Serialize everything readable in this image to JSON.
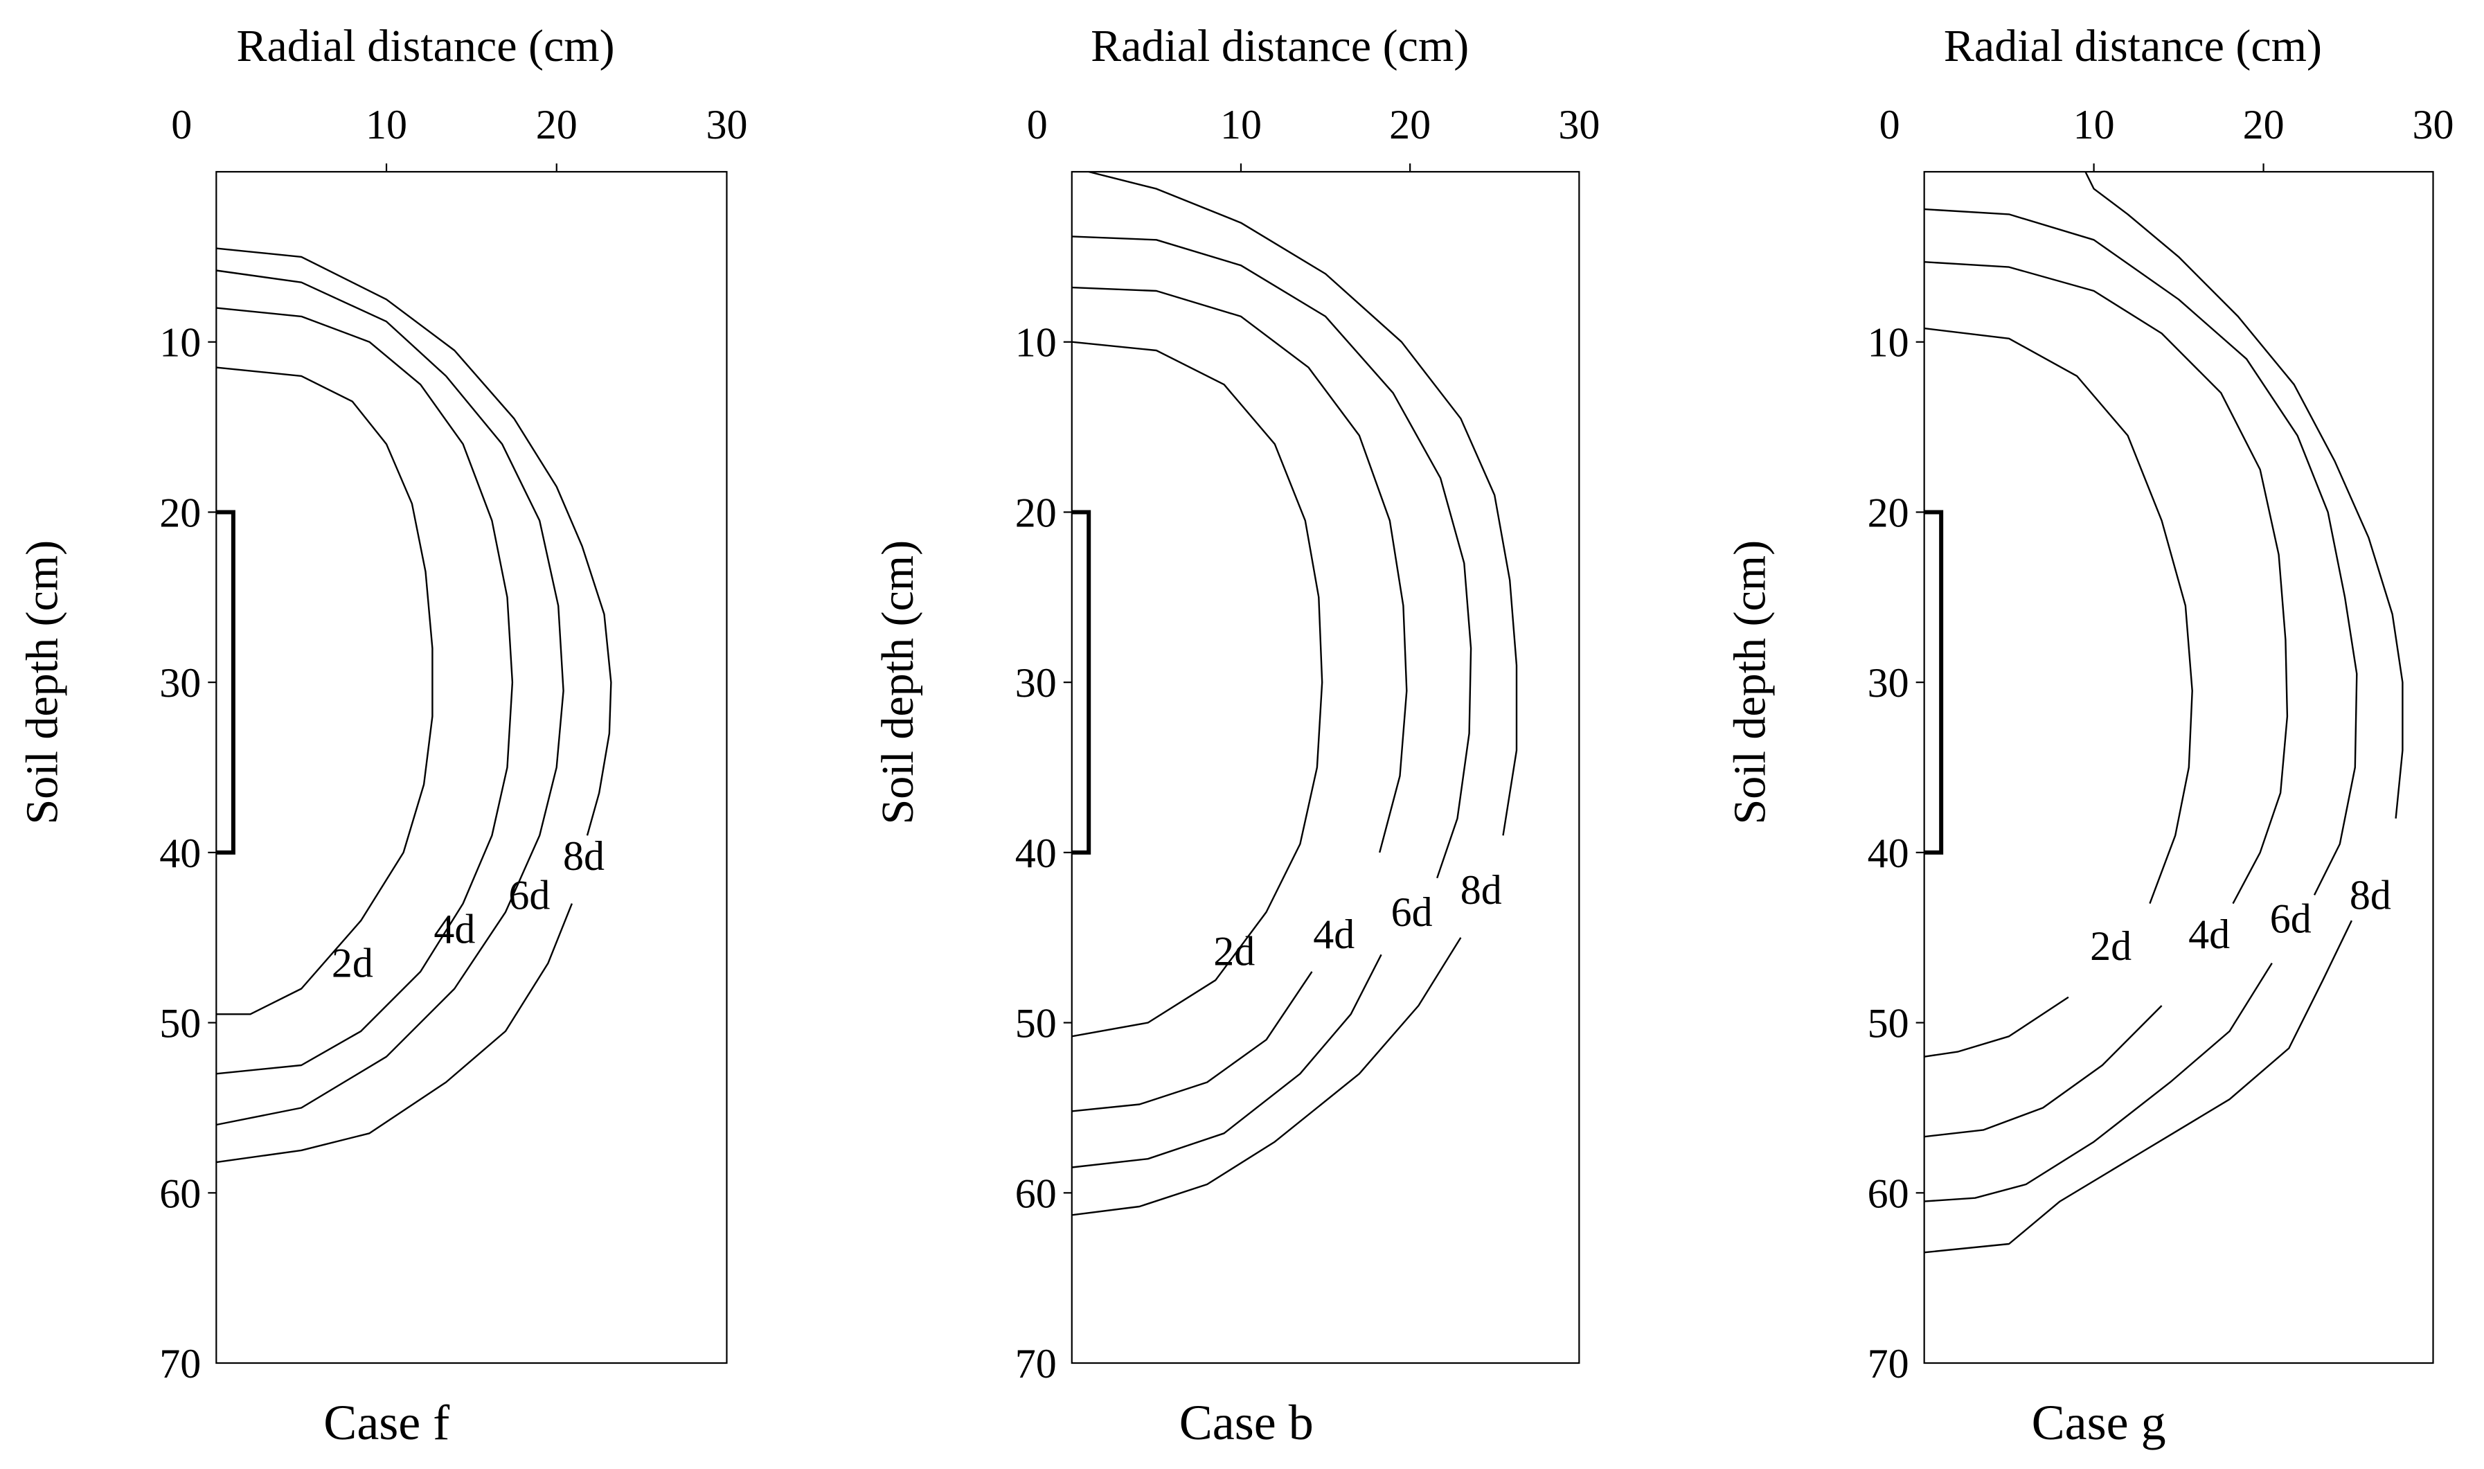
{
  "chart_data": [
    {
      "type": "line",
      "caption": "Case f",
      "xlabel": "Radial distance (cm)",
      "ylabel": "Soil depth (cm)",
      "xlim": [
        0,
        30
      ],
      "ylim": [
        70,
        0
      ],
      "x_ticks": [
        0,
        10,
        20,
        30
      ],
      "y_ticks": [
        10,
        20,
        30,
        40,
        50,
        60,
        70
      ],
      "x_axis_position": "top",
      "y_inverted": true,
      "grid": false,
      "emitter_segment": {
        "x": 1,
        "y": [
          20,
          40
        ]
      },
      "series": [
        {
          "name": "2d",
          "label_at": [
            8,
            46.5
          ],
          "points": [
            [
              0,
              11.5
            ],
            [
              5,
              12
            ],
            [
              8,
              13.5
            ],
            [
              10,
              16
            ],
            [
              11.5,
              19.5
            ],
            [
              12.3,
              23.5
            ],
            [
              12.7,
              28
            ],
            [
              12.7,
              32
            ],
            [
              12.2,
              36
            ],
            [
              11,
              40
            ],
            [
              8.5,
              44
            ],
            [
              5,
              48
            ],
            [
              2,
              49.5
            ],
            [
              0,
              49.5
            ]
          ]
        },
        {
          "name": "4d",
          "label_at": [
            14,
            44.5
          ],
          "points": [
            [
              0,
              8
            ],
            [
              5,
              8.5
            ],
            [
              9,
              10
            ],
            [
              12,
              12.5
            ],
            [
              14.5,
              16
            ],
            [
              16.2,
              20.5
            ],
            [
              17.1,
              25
            ],
            [
              17.4,
              30
            ],
            [
              17.1,
              35
            ],
            [
              16.2,
              39
            ],
            [
              14.5,
              43
            ],
            [
              12,
              47
            ],
            [
              8.5,
              50.5
            ],
            [
              5,
              52.5
            ],
            [
              0,
              53
            ]
          ]
        },
        {
          "name": "6d",
          "label_at": [
            18.4,
            42.5
          ],
          "points": [
            [
              0,
              5.8
            ],
            [
              5,
              6.5
            ],
            [
              10,
              8.8
            ],
            [
              13.5,
              12
            ],
            [
              16.8,
              16
            ],
            [
              19,
              20.5
            ],
            [
              20.1,
              25.5
            ],
            [
              20.4,
              30.5
            ],
            [
              20,
              35
            ],
            [
              19,
              39
            ],
            [
              17,
              43.5
            ],
            [
              14,
              48
            ],
            [
              10,
              52
            ],
            [
              5,
              55
            ],
            [
              0,
              56
            ]
          ]
        },
        {
          "name": "8d",
          "label_at": [
            21.6,
            40.2
          ],
          "points": [
            [
              0,
              4.5
            ],
            [
              5,
              5
            ],
            [
              10,
              7.5
            ],
            [
              14,
              10.5
            ],
            [
              17.5,
              14.5
            ],
            [
              20,
              18.5
            ],
            [
              21.5,
              22
            ],
            [
              22.8,
              26
            ],
            [
              23.2,
              30
            ],
            [
              23.1,
              33
            ],
            [
              22.5,
              36.5
            ],
            [
              21.8,
              39
            ]
          ]
        },
        {
          "name": "",
          "points": [
            [
              20.9,
              43
            ],
            [
              19.5,
              46.5
            ],
            [
              17,
              50.5
            ],
            [
              13.5,
              53.5
            ],
            [
              9,
              56.5
            ],
            [
              5,
              57.5
            ],
            [
              0,
              58.2
            ]
          ]
        }
      ]
    },
    {
      "type": "line",
      "caption": "Case b",
      "xlabel": "Radial distance (cm)",
      "ylabel": "Soil depth (cm)",
      "xlim": [
        0,
        30
      ],
      "ylim": [
        70,
        0
      ],
      "x_ticks": [
        0,
        10,
        20,
        30
      ],
      "y_ticks": [
        10,
        20,
        30,
        40,
        50,
        60,
        70
      ],
      "x_axis_position": "top",
      "y_inverted": true,
      "grid": false,
      "emitter_segment": {
        "x": 1,
        "y": [
          20,
          40
        ]
      },
      "series": [
        {
          "name": "2d",
          "label_at": [
            9.6,
            45.8
          ],
          "points": [
            [
              0,
              10
            ],
            [
              5,
              10.5
            ],
            [
              9,
              12.5
            ],
            [
              12,
              16
            ],
            [
              13.8,
              20.5
            ],
            [
              14.6,
              25
            ],
            [
              14.8,
              30
            ],
            [
              14.5,
              35
            ],
            [
              13.5,
              39.5
            ],
            [
              11.5,
              43.5
            ],
            [
              8.5,
              47.5
            ],
            [
              4.5,
              50
            ],
            [
              0,
              50.8
            ]
          ]
        },
        {
          "name": "4d",
          "label_at": [
            15.5,
            44.8
          ],
          "points": [
            [
              0,
              6.8
            ],
            [
              5,
              7
            ],
            [
              10,
              8.5
            ],
            [
              14,
              11.5
            ],
            [
              17,
              15.5
            ],
            [
              18.8,
              20.5
            ],
            [
              19.6,
              25.5
            ],
            [
              19.8,
              30.5
            ],
            [
              19.4,
              35.5
            ],
            [
              18.2,
              40
            ]
          ]
        },
        {
          "name": "",
          "points": [
            [
              14.2,
              47
            ],
            [
              11.5,
              51
            ],
            [
              8,
              53.5
            ],
            [
              4,
              54.8
            ],
            [
              0,
              55.2
            ]
          ]
        },
        {
          "name": "6d",
          "label_at": [
            20.1,
            43.5
          ],
          "points": [
            [
              0,
              3.8
            ],
            [
              5,
              4
            ],
            [
              10,
              5.5
            ],
            [
              15,
              8.5
            ],
            [
              19,
              13
            ],
            [
              21.8,
              18
            ],
            [
              23.2,
              23
            ],
            [
              23.6,
              28
            ],
            [
              23.5,
              33
            ],
            [
              22.8,
              38
            ],
            [
              21.6,
              41.5
            ]
          ]
        },
        {
          "name": "",
          "points": [
            [
              18.3,
              46
            ],
            [
              16.5,
              49.5
            ],
            [
              13.5,
              53
            ],
            [
              9,
              56.5
            ],
            [
              4.5,
              58
            ],
            [
              0,
              58.5
            ]
          ]
        },
        {
          "name": "8d",
          "label_at": [
            24.2,
            42.2
          ],
          "points": [
            [
              1,
              0
            ],
            [
              5,
              1
            ],
            [
              10,
              3
            ],
            [
              15,
              6
            ],
            [
              19.5,
              10
            ],
            [
              23,
              14.5
            ],
            [
              25,
              19
            ],
            [
              25.9,
              24
            ],
            [
              26.3,
              29
            ],
            [
              26.3,
              34
            ],
            [
              25.5,
              39
            ]
          ]
        },
        {
          "name": "",
          "points": [
            [
              23,
              45
            ],
            [
              20.5,
              49
            ],
            [
              17,
              53
            ],
            [
              12,
              57
            ],
            [
              8,
              59.5
            ],
            [
              4,
              60.8
            ],
            [
              0,
              61.3
            ]
          ]
        }
      ]
    },
    {
      "type": "line",
      "caption": "Case g",
      "xlabel": "Radial distance (cm)",
      "ylabel": "Soil depth (cm)",
      "xlim": [
        0,
        30
      ],
      "ylim": [
        70,
        0
      ],
      "x_ticks": [
        0,
        10,
        20,
        30
      ],
      "y_ticks": [
        10,
        20,
        30,
        40,
        50,
        60,
        70
      ],
      "x_axis_position": "top",
      "y_inverted": true,
      "grid": false,
      "emitter_segment": {
        "x": 1,
        "y": [
          20,
          40
        ]
      },
      "series": [
        {
          "name": "2d",
          "label_at": [
            11,
            45.5
          ],
          "points": [
            [
              0,
              9.2
            ],
            [
              5,
              9.8
            ],
            [
              9,
              12
            ],
            [
              12,
              15.5
            ],
            [
              14,
              20.5
            ],
            [
              15.4,
              25.5
            ],
            [
              15.8,
              30.5
            ],
            [
              15.6,
              35
            ],
            [
              14.8,
              39
            ],
            [
              13.3,
              43
            ]
          ]
        },
        {
          "name": "",
          "points": [
            [
              8.5,
              48.5
            ],
            [
              5,
              50.8
            ],
            [
              2,
              51.7
            ],
            [
              0,
              52
            ]
          ]
        },
        {
          "name": "4d",
          "label_at": [
            16.8,
            44.8
          ],
          "points": [
            [
              0,
              5.3
            ],
            [
              5,
              5.6
            ],
            [
              10,
              7
            ],
            [
              14,
              9.5
            ],
            [
              17.5,
              13
            ],
            [
              19.8,
              17.5
            ],
            [
              20.9,
              22.5
            ],
            [
              21.3,
              27.5
            ],
            [
              21.4,
              32
            ],
            [
              21,
              36.5
            ],
            [
              19.8,
              40
            ],
            [
              18.2,
              43
            ]
          ]
        },
        {
          "name": "",
          "points": [
            [
              14,
              49
            ],
            [
              10.5,
              52.5
            ],
            [
              7,
              55
            ],
            [
              3.5,
              56.3
            ],
            [
              0,
              56.7
            ]
          ]
        },
        {
          "name": "6d",
          "label_at": [
            21.6,
            43.9
          ],
          "points": [
            [
              0,
              2.2
            ],
            [
              5,
              2.5
            ],
            [
              10,
              4
            ],
            [
              15,
              7.5
            ],
            [
              19,
              11
            ],
            [
              22,
              15.5
            ],
            [
              23.8,
              20
            ],
            [
              24.8,
              25
            ],
            [
              25.5,
              29.5
            ],
            [
              25.4,
              35
            ],
            [
              24.5,
              39.5
            ],
            [
              23,
              42.5
            ]
          ]
        },
        {
          "name": "",
          "points": [
            [
              20.5,
              46.5
            ],
            [
              18,
              50.5
            ],
            [
              14.5,
              53.5
            ],
            [
              10,
              57
            ],
            [
              6,
              59.5
            ],
            [
              3,
              60.3
            ],
            [
              0,
              60.5
            ]
          ]
        },
        {
          "name": "8d",
          "label_at": [
            26.3,
            42.5
          ],
          "points": [
            [
              9.5,
              0
            ],
            [
              10,
              1
            ],
            [
              12,
              2.5
            ],
            [
              15,
              5
            ],
            [
              18.5,
              8.5
            ],
            [
              21.8,
              12.5
            ],
            [
              24.2,
              17
            ],
            [
              26.2,
              21.5
            ],
            [
              27.6,
              26
            ],
            [
              28.2,
              30
            ],
            [
              28.2,
              34
            ],
            [
              27.8,
              38
            ]
          ]
        },
        {
          "name": "",
          "points": [
            [
              25.2,
              44
            ],
            [
              23.5,
              47.5
            ],
            [
              21.5,
              51.5
            ],
            [
              18,
              54.5
            ],
            [
              13,
              57.5
            ],
            [
              8,
              60.5
            ],
            [
              5,
              63
            ],
            [
              0,
              63.5
            ]
          ]
        }
      ]
    }
  ]
}
